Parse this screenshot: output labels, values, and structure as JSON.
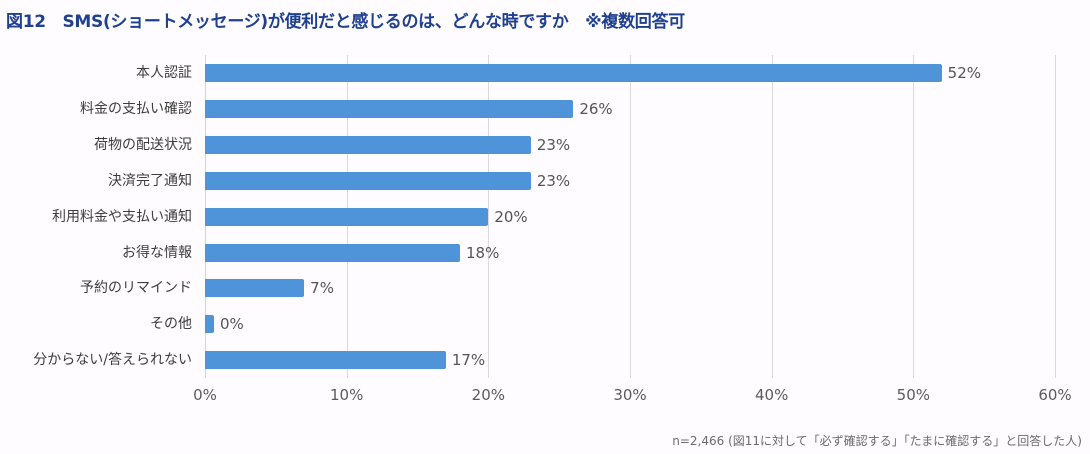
{
  "title": "図12　SMS(ショートメッセージ)が便利だと感じるのは、どんな時ですか　※複数回答可",
  "note": "n=2,466 (図11に対して「必ず確認する」「たまに確認する」と回答した人)",
  "colors": {
    "bar": "#4f93d8",
    "title": "#1f3f8f",
    "grid": "#dcd8e0"
  },
  "axis": {
    "ticks": [
      "0%",
      "10%",
      "20%",
      "30%",
      "40%",
      "50%",
      "60%"
    ]
  },
  "chart_data": {
    "type": "bar",
    "orientation": "horizontal",
    "title": "図12　SMS(ショートメッセージ)が便利だと感じるのは、どんな時ですか　※複数回答可",
    "categories": [
      "本人認証",
      "料金の支払い確認",
      "荷物の配送状況",
      "決済完了通知",
      "利用料金や支払い通知",
      "お得な情報",
      "予約のリマインド",
      "その他",
      "分からない/答えられない"
    ],
    "values": [
      52,
      26,
      23,
      23,
      20,
      18,
      7,
      0,
      17
    ],
    "labels": [
      "52%",
      "26%",
      "23%",
      "23%",
      "20%",
      "18%",
      "7%",
      "0%",
      "17%"
    ],
    "xlabel": "",
    "ylabel": "",
    "xlim": [
      0,
      60
    ],
    "xticks": [
      "0%",
      "10%",
      "20%",
      "30%",
      "40%",
      "50%",
      "60%"
    ],
    "grid": true,
    "legend": null,
    "footnote": "n=2,466 (図11に対して「必ず確認する」「たまに確認する」と回答した人)"
  }
}
